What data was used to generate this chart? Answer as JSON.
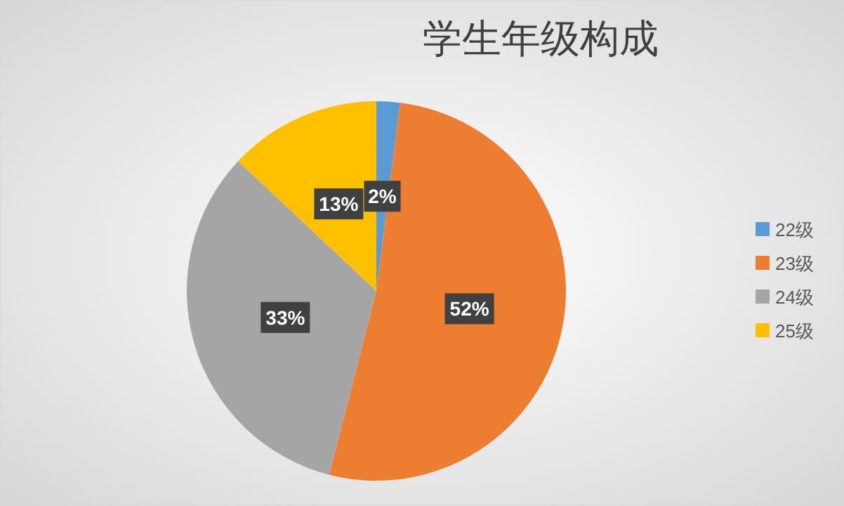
{
  "chart_data": {
    "type": "pie",
    "title": "学生年级构成",
    "categories": [
      "22级",
      "23级",
      "24级",
      "25级"
    ],
    "values": [
      2,
      52,
      33,
      13
    ],
    "colors": [
      "#5b9bd5",
      "#ed7d31",
      "#a5a5a5",
      "#ffc000"
    ],
    "value_labels": [
      "2%",
      "52%",
      "33%",
      "13%"
    ],
    "legend": "right"
  }
}
